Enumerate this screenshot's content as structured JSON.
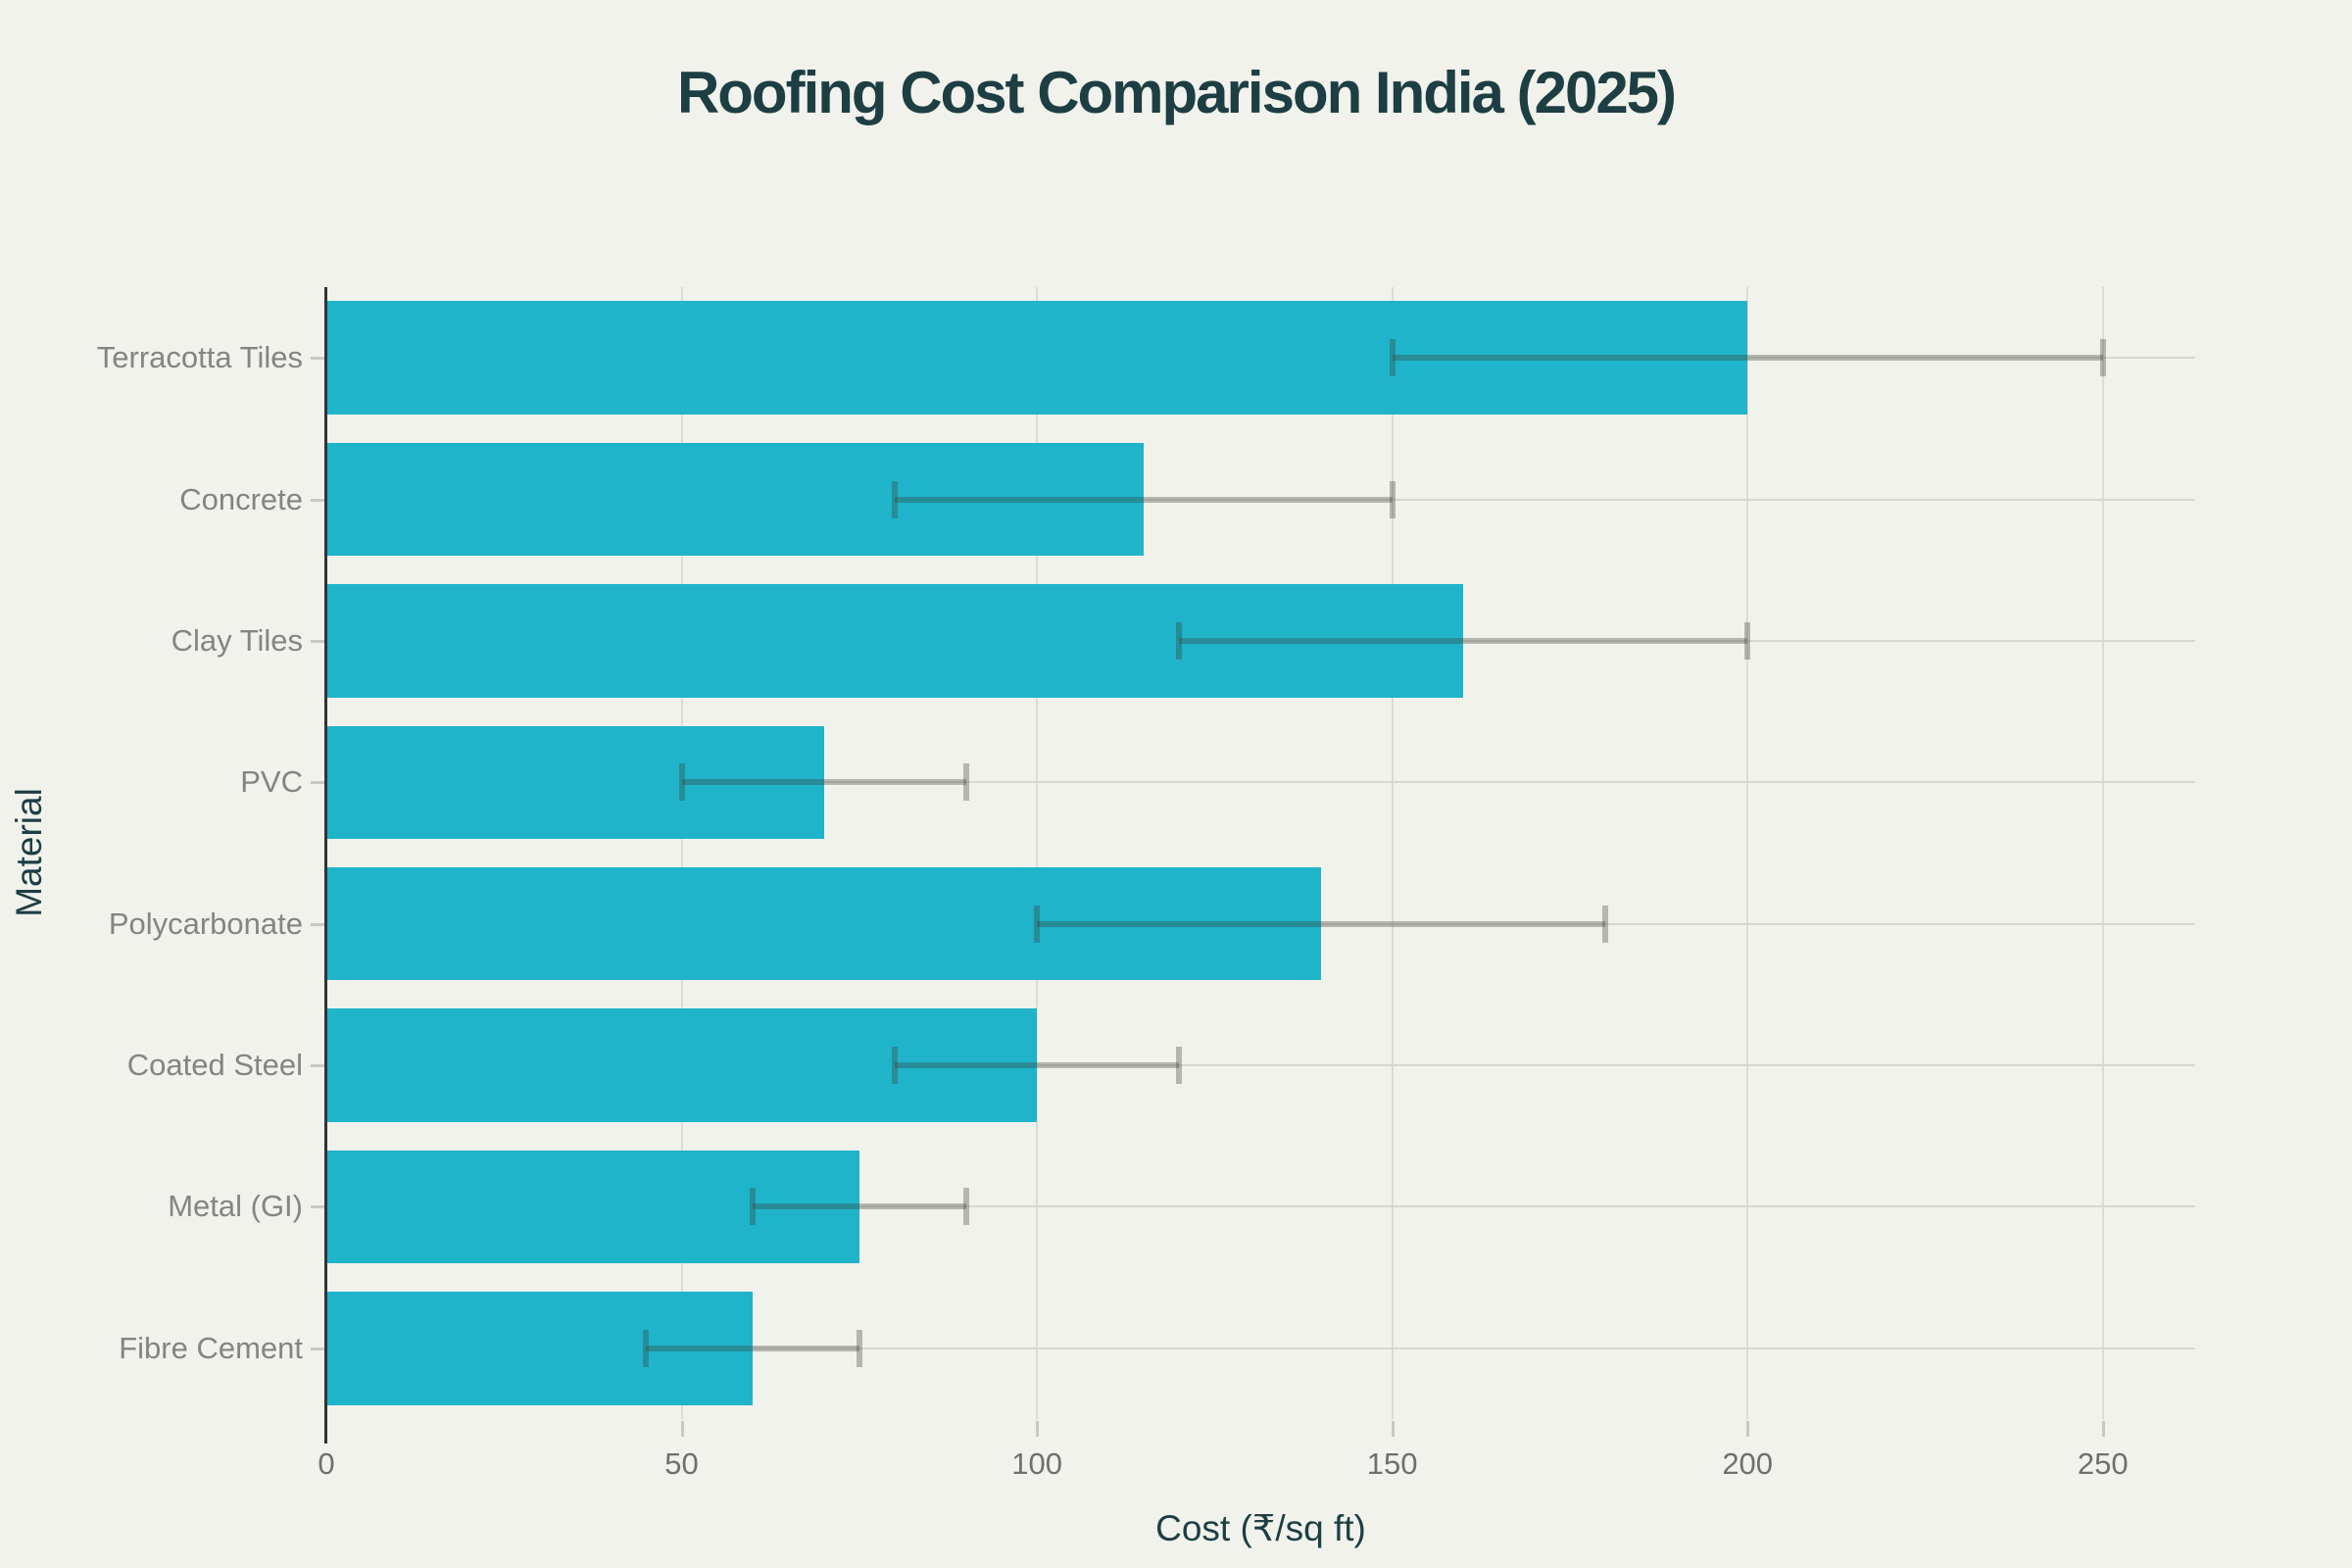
{
  "chart_data": {
    "type": "bar",
    "orientation": "horizontal",
    "title": "Roofing Cost Comparison India (2025)",
    "xlabel": "Cost (₹/sq ft)",
    "ylabel": "Material",
    "categories": [
      "Terracotta Tiles",
      "Concrete",
      "Clay Tiles",
      "PVC",
      "Polycarbonate",
      "Coated Steel",
      "Metal (GI)",
      "Fibre Cement"
    ],
    "values": [
      200,
      115,
      160,
      70,
      140,
      100,
      75,
      60
    ],
    "error_low": [
      150,
      80,
      120,
      50,
      100,
      80,
      60,
      45
    ],
    "error_high": [
      250,
      150,
      200,
      90,
      180,
      120,
      90,
      75
    ],
    "xticks": [
      0,
      50,
      100,
      150,
      200,
      250
    ],
    "xlim": [
      0,
      263
    ],
    "grid": true,
    "legend": false,
    "colors": {
      "bar": "#1fb4ca",
      "error_bar": "rgba(60,60,50,0.33)",
      "background": "#f1f2ec",
      "vertical_grid": "#dcdcd6",
      "horizontal_grid": "#d7d7d1",
      "axis_spine": "#333333",
      "tick_label": "#6f6f6f",
      "category_label": "#848484",
      "title": "#1d3e43",
      "axis_title": "#1d3e43"
    }
  }
}
